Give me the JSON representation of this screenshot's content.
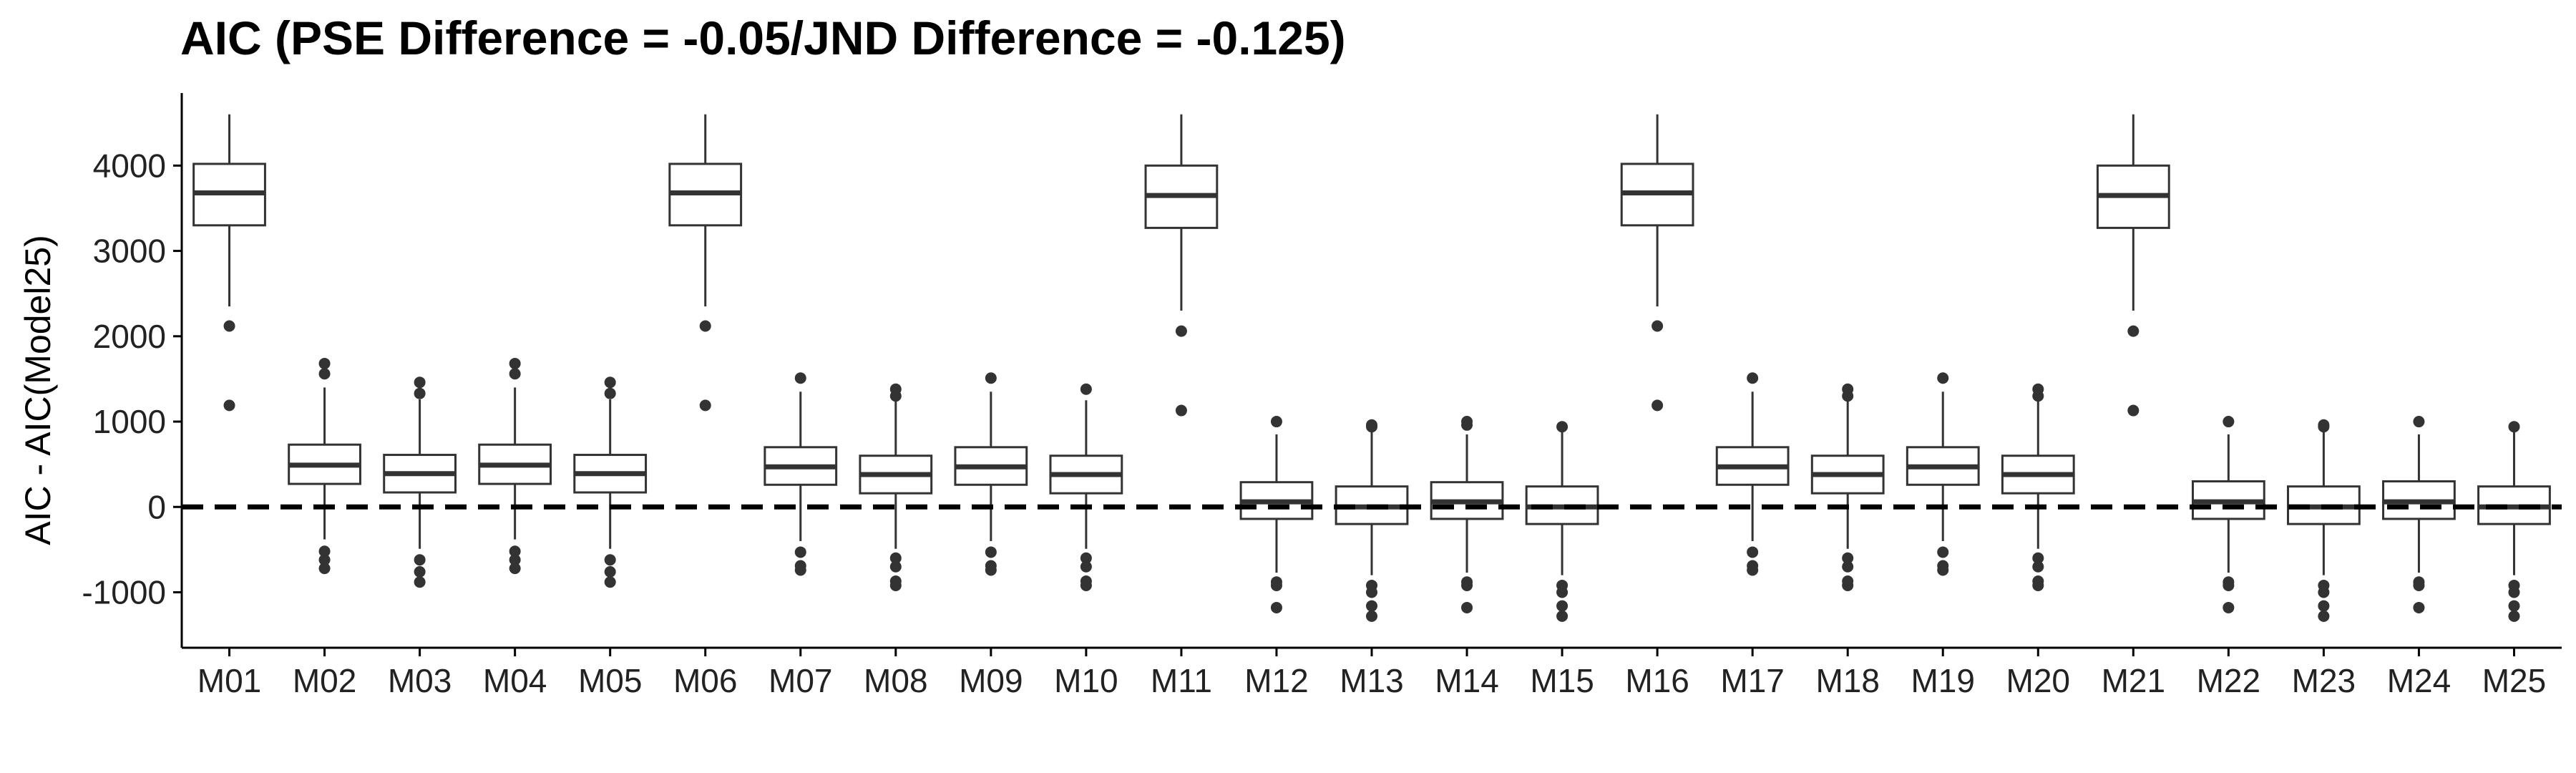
{
  "chart_data": {
    "type": "boxplot",
    "title": "AIC (PSE Difference = -0.05/JND Difference = -0.125)",
    "xlabel": "",
    "ylabel": "AIC - AIC(Model25)",
    "ylim": [
      -1650,
      4850
    ],
    "yticks": [
      -1000,
      0,
      1000,
      2000,
      3000,
      4000
    ],
    "grid": false,
    "legend": "none",
    "reference_line": {
      "y": 0,
      "style": "dashed"
    },
    "categories": [
      "M01",
      "M02",
      "M03",
      "M04",
      "M05",
      "M06",
      "M07",
      "M08",
      "M09",
      "M10",
      "M11",
      "M12",
      "M13",
      "M14",
      "M15",
      "M16",
      "M17",
      "M18",
      "M19",
      "M20",
      "M21",
      "M22",
      "M23",
      "M24",
      "M25"
    ],
    "boxes": [
      {
        "q1": 3300,
        "median": 3680,
        "q3": 4020,
        "whisker_low": 2350,
        "whisker_high": 4600,
        "outliers": [
          2120,
          1190
        ]
      },
      {
        "q1": 270,
        "median": 490,
        "q3": 730,
        "whisker_low": -380,
        "whisker_high": 1400,
        "outliers": [
          1560,
          1680,
          -520,
          -620,
          -720
        ]
      },
      {
        "q1": 170,
        "median": 390,
        "q3": 610,
        "whisker_low": -490,
        "whisker_high": 1260,
        "outliers": [
          1330,
          1460,
          -620,
          -760,
          -880
        ]
      },
      {
        "q1": 270,
        "median": 490,
        "q3": 730,
        "whisker_low": -380,
        "whisker_high": 1400,
        "outliers": [
          1560,
          1680,
          -520,
          -620,
          -720
        ]
      },
      {
        "q1": 170,
        "median": 390,
        "q3": 610,
        "whisker_low": -490,
        "whisker_high": 1260,
        "outliers": [
          1330,
          1460,
          -620,
          -760,
          -880
        ]
      },
      {
        "q1": 3300,
        "median": 3680,
        "q3": 4020,
        "whisker_low": 2350,
        "whisker_high": 4600,
        "outliers": [
          2120,
          1190
        ]
      },
      {
        "q1": 260,
        "median": 470,
        "q3": 700,
        "whisker_low": -400,
        "whisker_high": 1350,
        "outliers": [
          1510,
          -530,
          -690,
          -740
        ]
      },
      {
        "q1": 160,
        "median": 380,
        "q3": 600,
        "whisker_low": -490,
        "whisker_high": 1250,
        "outliers": [
          1300,
          1380,
          -600,
          -700,
          -870,
          -920
        ]
      },
      {
        "q1": 260,
        "median": 470,
        "q3": 700,
        "whisker_low": -400,
        "whisker_high": 1350,
        "outliers": [
          1510,
          -530,
          -690,
          -740
        ]
      },
      {
        "q1": 160,
        "median": 380,
        "q3": 600,
        "whisker_low": -490,
        "whisker_high": 1250,
        "outliers": [
          1380,
          -600,
          -700,
          -870,
          -920
        ]
      },
      {
        "q1": 3270,
        "median": 3650,
        "q3": 4000,
        "whisker_low": 2300,
        "whisker_high": 4600,
        "outliers": [
          2060,
          1130
        ]
      },
      {
        "q1": -140,
        "median": 60,
        "q3": 290,
        "whisker_low": -770,
        "whisker_high": 850,
        "outliers": [
          1000,
          -880,
          -920,
          -1180
        ]
      },
      {
        "q1": -200,
        "median": 0,
        "q3": 240,
        "whisker_low": -800,
        "whisker_high": 880,
        "outliers": [
          940,
          960,
          -920,
          -1000,
          -1160,
          -1280
        ]
      },
      {
        "q1": -140,
        "median": 60,
        "q3": 290,
        "whisker_low": -770,
        "whisker_high": 850,
        "outliers": [
          960,
          1000,
          -880,
          -920,
          -1180
        ]
      },
      {
        "q1": -200,
        "median": 0,
        "q3": 240,
        "whisker_low": -800,
        "whisker_high": 880,
        "outliers": [
          940,
          -920,
          -1000,
          -1160,
          -1280
        ]
      },
      {
        "q1": 3300,
        "median": 3680,
        "q3": 4020,
        "whisker_low": 2350,
        "whisker_high": 4600,
        "outliers": [
          2120,
          1190
        ]
      },
      {
        "q1": 260,
        "median": 470,
        "q3": 700,
        "whisker_low": -400,
        "whisker_high": 1350,
        "outliers": [
          1510,
          -530,
          -690,
          -740
        ]
      },
      {
        "q1": 160,
        "median": 380,
        "q3": 600,
        "whisker_low": -490,
        "whisker_high": 1250,
        "outliers": [
          1300,
          1380,
          -600,
          -700,
          -870,
          -920
        ]
      },
      {
        "q1": 260,
        "median": 470,
        "q3": 700,
        "whisker_low": -400,
        "whisker_high": 1350,
        "outliers": [
          1510,
          -530,
          -690,
          -740
        ]
      },
      {
        "q1": 160,
        "median": 380,
        "q3": 600,
        "whisker_low": -490,
        "whisker_high": 1250,
        "outliers": [
          1300,
          1380,
          -600,
          -700,
          -870,
          -920
        ]
      },
      {
        "q1": 3270,
        "median": 3650,
        "q3": 4000,
        "whisker_low": 2300,
        "whisker_high": 4600,
        "outliers": [
          2060,
          1130
        ]
      },
      {
        "q1": -140,
        "median": 60,
        "q3": 300,
        "whisker_low": -770,
        "whisker_high": 850,
        "outliers": [
          1000,
          -880,
          -920,
          -1180
        ]
      },
      {
        "q1": -200,
        "median": 0,
        "q3": 240,
        "whisker_low": -800,
        "whisker_high": 880,
        "outliers": [
          940,
          960,
          -920,
          -1000,
          -1160,
          -1280
        ]
      },
      {
        "q1": -140,
        "median": 60,
        "q3": 300,
        "whisker_low": -770,
        "whisker_high": 850,
        "outliers": [
          1000,
          -880,
          -920,
          -1180
        ]
      },
      {
        "q1": -200,
        "median": 0,
        "q3": 240,
        "whisker_low": -800,
        "whisker_high": 880,
        "outliers": [
          940,
          -920,
          -1000,
          -1160,
          -1280
        ]
      }
    ]
  },
  "colors": {
    "box_fill": "#ffffff",
    "box_stroke": "#333333",
    "median": "#333333",
    "outlier": "#333333",
    "reference_line": "#000000",
    "axis": "#000000"
  }
}
